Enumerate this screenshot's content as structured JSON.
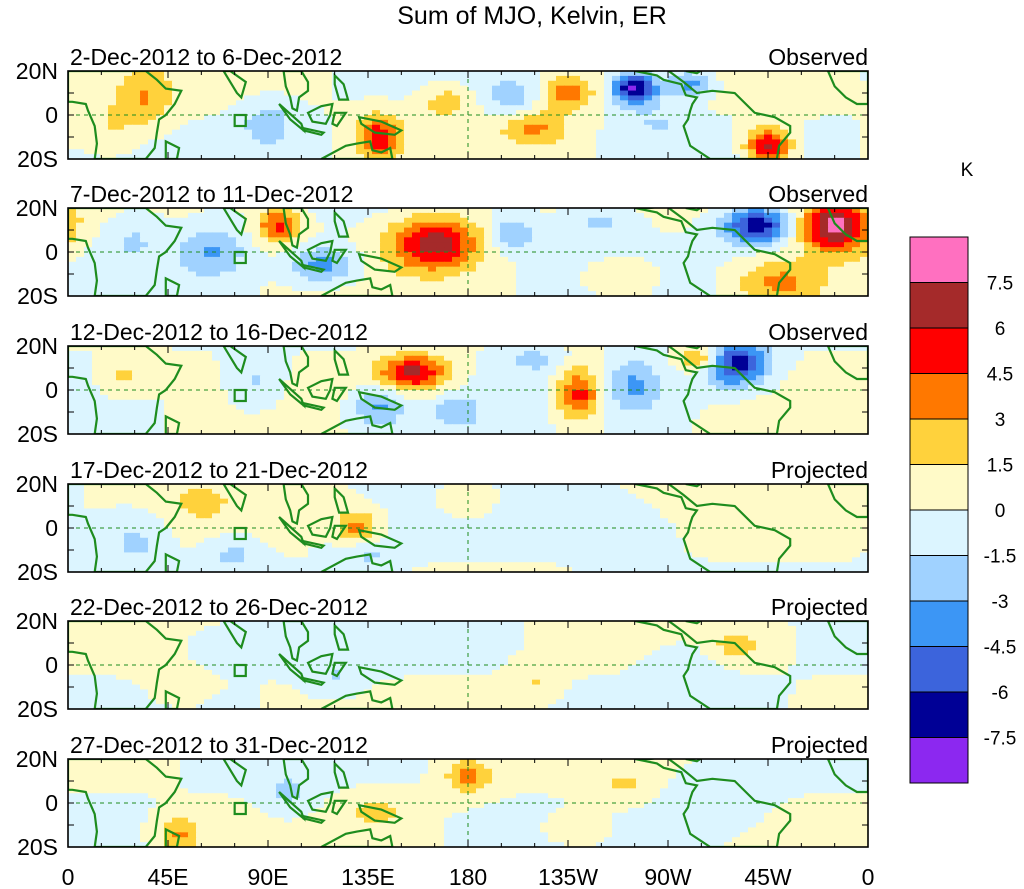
{
  "chart_data": {
    "type": "heatmap",
    "title": "Sum of MJO, Kelvin, ER",
    "units": "K",
    "x_ticks": [
      "0",
      "45E",
      "90E",
      "135E",
      "180",
      "135W",
      "90W",
      "45W",
      "0"
    ],
    "y_ticks": [
      "20N",
      "0",
      "20S"
    ],
    "colorbar_labels": [
      "7.5",
      "6",
      "4.5",
      "3",
      "1.5",
      "0",
      "-1.5",
      "-3",
      "-4.5",
      "-6",
      "-7.5"
    ],
    "colorbar_colors": [
      "#ff70c0",
      "#a52a2a",
      "#ff0000",
      "#ff7800",
      "#ffd23c",
      "#fffac8",
      "#dcf5ff",
      "#a0d2ff",
      "#3c96f5",
      "#3c64dc",
      "#000096",
      "#8c28f0"
    ],
    "panels": [
      {
        "date_range": "2-Dec-2012 to 6-Dec-2012",
        "status": "Observed",
        "blobs": [
          [
            35,
            0.3,
            12,
            0.35,
            2.8
          ],
          [
            20,
            0.6,
            10,
            0.3,
            1.5
          ],
          [
            140,
            0.75,
            10,
            0.25,
            5.5
          ],
          [
            200,
            0.3,
            10,
            0.2,
            -2.5
          ],
          [
            225,
            0.25,
            12,
            0.2,
            4.0
          ],
          [
            210,
            0.65,
            15,
            0.2,
            3.2
          ],
          [
            255,
            0.2,
            10,
            0.18,
            -7.8
          ],
          [
            280,
            0.15,
            10,
            0.15,
            -4.0
          ],
          [
            315,
            0.85,
            10,
            0.2,
            6.5
          ],
          [
            170,
            0.35,
            12,
            0.2,
            2.5
          ],
          [
            90,
            0.6,
            12,
            0.25,
            -2.5
          ],
          [
            265,
            0.6,
            15,
            0.25,
            -1.5
          ]
        ]
      },
      {
        "date_range": "7-Dec-2012 to 11-Dec-2012",
        "status": "Observed",
        "blobs": [
          [
            165,
            0.4,
            20,
            0.3,
            6.8
          ],
          [
            95,
            0.2,
            10,
            0.2,
            5.0
          ],
          [
            345,
            0.2,
            15,
            0.3,
            8.5
          ],
          [
            310,
            0.2,
            15,
            0.2,
            -7.0
          ],
          [
            320,
            0.85,
            20,
            0.25,
            3.5
          ],
          [
            250,
            0.8,
            15,
            0.2,
            2.0
          ],
          [
            115,
            0.65,
            15,
            0.2,
            -4.0
          ],
          [
            65,
            0.5,
            15,
            0.3,
            -3.0
          ],
          [
            200,
            0.3,
            10,
            0.2,
            -3.0
          ],
          [
            240,
            0.15,
            15,
            0.15,
            -2.0
          ],
          [
            30,
            0.35,
            12,
            0.3,
            -1.5
          ]
        ]
      },
      {
        "date_range": "12-Dec-2012 to 16-Dec-2012",
        "status": "Observed",
        "blobs": [
          [
            155,
            0.3,
            15,
            0.2,
            6.5
          ],
          [
            230,
            0.55,
            10,
            0.3,
            5.5
          ],
          [
            300,
            0.2,
            15,
            0.25,
            -7.2
          ],
          [
            285,
            0.15,
            10,
            0.15,
            4.5
          ],
          [
            140,
            0.7,
            12,
            0.25,
            -3.5
          ],
          [
            175,
            0.75,
            12,
            0.2,
            -2.5
          ],
          [
            255,
            0.45,
            12,
            0.3,
            -3.0
          ],
          [
            85,
            0.4,
            12,
            0.3,
            -2.0
          ],
          [
            25,
            0.35,
            10,
            0.2,
            2.0
          ],
          [
            210,
            0.15,
            12,
            0.15,
            -2.0
          ]
        ]
      },
      {
        "date_range": "17-Dec-2012 to 21-Dec-2012",
        "status": "Projected",
        "blobs": [
          [
            130,
            0.5,
            10,
            0.2,
            3.5
          ],
          [
            60,
            0.2,
            12,
            0.2,
            2.0
          ],
          [
            180,
            0.2,
            12,
            0.2,
            1.8
          ],
          [
            75,
            0.8,
            12,
            0.2,
            -2.0
          ],
          [
            135,
            0.8,
            15,
            0.2,
            -1.8
          ],
          [
            250,
            0.6,
            20,
            0.3,
            -1.5
          ],
          [
            30,
            0.65,
            15,
            0.3,
            -2.0
          ]
        ]
      },
      {
        "date_range": "22-Dec-2012 to 26-Dec-2012",
        "status": "Projected",
        "blobs": [
          [
            50,
            0.75,
            12,
            0.2,
            1.6
          ],
          [
            120,
            0.65,
            12,
            0.2,
            -1.6
          ],
          [
            210,
            0.7,
            10,
            0.2,
            1.6
          ],
          [
            300,
            0.3,
            12,
            0.2,
            2.2
          ],
          [
            70,
            0.3,
            15,
            0.2,
            -1.6
          ],
          [
            280,
            0.5,
            20,
            0.3,
            -1.2
          ]
        ]
      },
      {
        "date_range": "27-Dec-2012 to 31-Dec-2012",
        "status": "Projected",
        "blobs": [
          [
            180,
            0.2,
            10,
            0.2,
            3.5
          ],
          [
            50,
            0.85,
            10,
            0.2,
            3.2
          ],
          [
            100,
            0.4,
            12,
            0.25,
            -1.8
          ],
          [
            140,
            0.6,
            15,
            0.2,
            1.8
          ],
          [
            230,
            0.8,
            15,
            0.2,
            1.6
          ],
          [
            290,
            0.5,
            20,
            0.3,
            -1.5
          ],
          [
            250,
            0.3,
            15,
            0.2,
            1.5
          ]
        ]
      }
    ]
  }
}
